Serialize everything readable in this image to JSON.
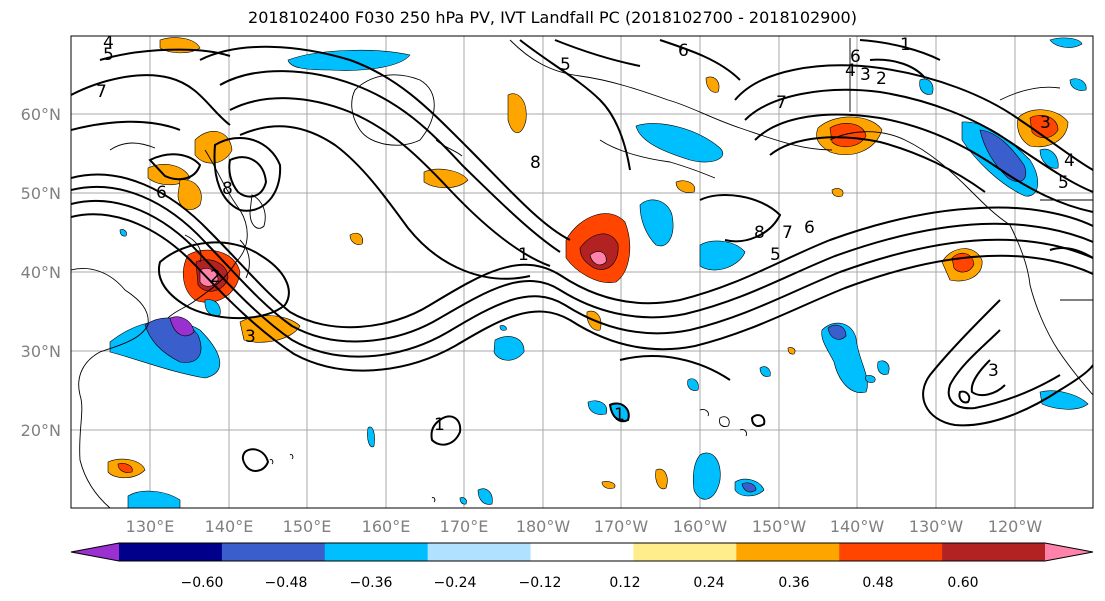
{
  "title": "2018102400 F030 250 hPa PV, IVT Landfall PC (2018102700 - 2018102900)",
  "map": {
    "lat_labels": [
      "60°N",
      "50°N",
      "40°N",
      "30°N",
      "20°N"
    ],
    "lon_labels": [
      "130°E",
      "140°E",
      "150°E",
      "160°E",
      "170°E",
      "180°W",
      "170°W",
      "160°W",
      "150°W",
      "140°W",
      "130°W",
      "120°W"
    ],
    "contour_labels": [
      "4",
      "5",
      "7",
      "6",
      "8",
      "1",
      "2",
      "3",
      "6",
      "8",
      "7",
      "6",
      "5",
      "4",
      "3",
      "2",
      "1",
      "1",
      "1",
      "3",
      "4",
      "5",
      "6",
      "7",
      "8",
      "5",
      "3"
    ]
  },
  "colorbar": {
    "tick_labels": [
      "−0.60",
      "−0.48",
      "−0.36",
      "−0.24",
      "−0.12",
      "0.12",
      "0.24",
      "0.36",
      "0.48",
      "0.60"
    ],
    "colors": [
      "#9b30d0",
      "#00008b",
      "#3a5fcd",
      "#00bfff",
      "#b0e2ff",
      "#ffffff",
      "#ffec8b",
      "#ffa500",
      "#ff4500",
      "#b22222",
      "#ff82ab"
    ]
  }
}
